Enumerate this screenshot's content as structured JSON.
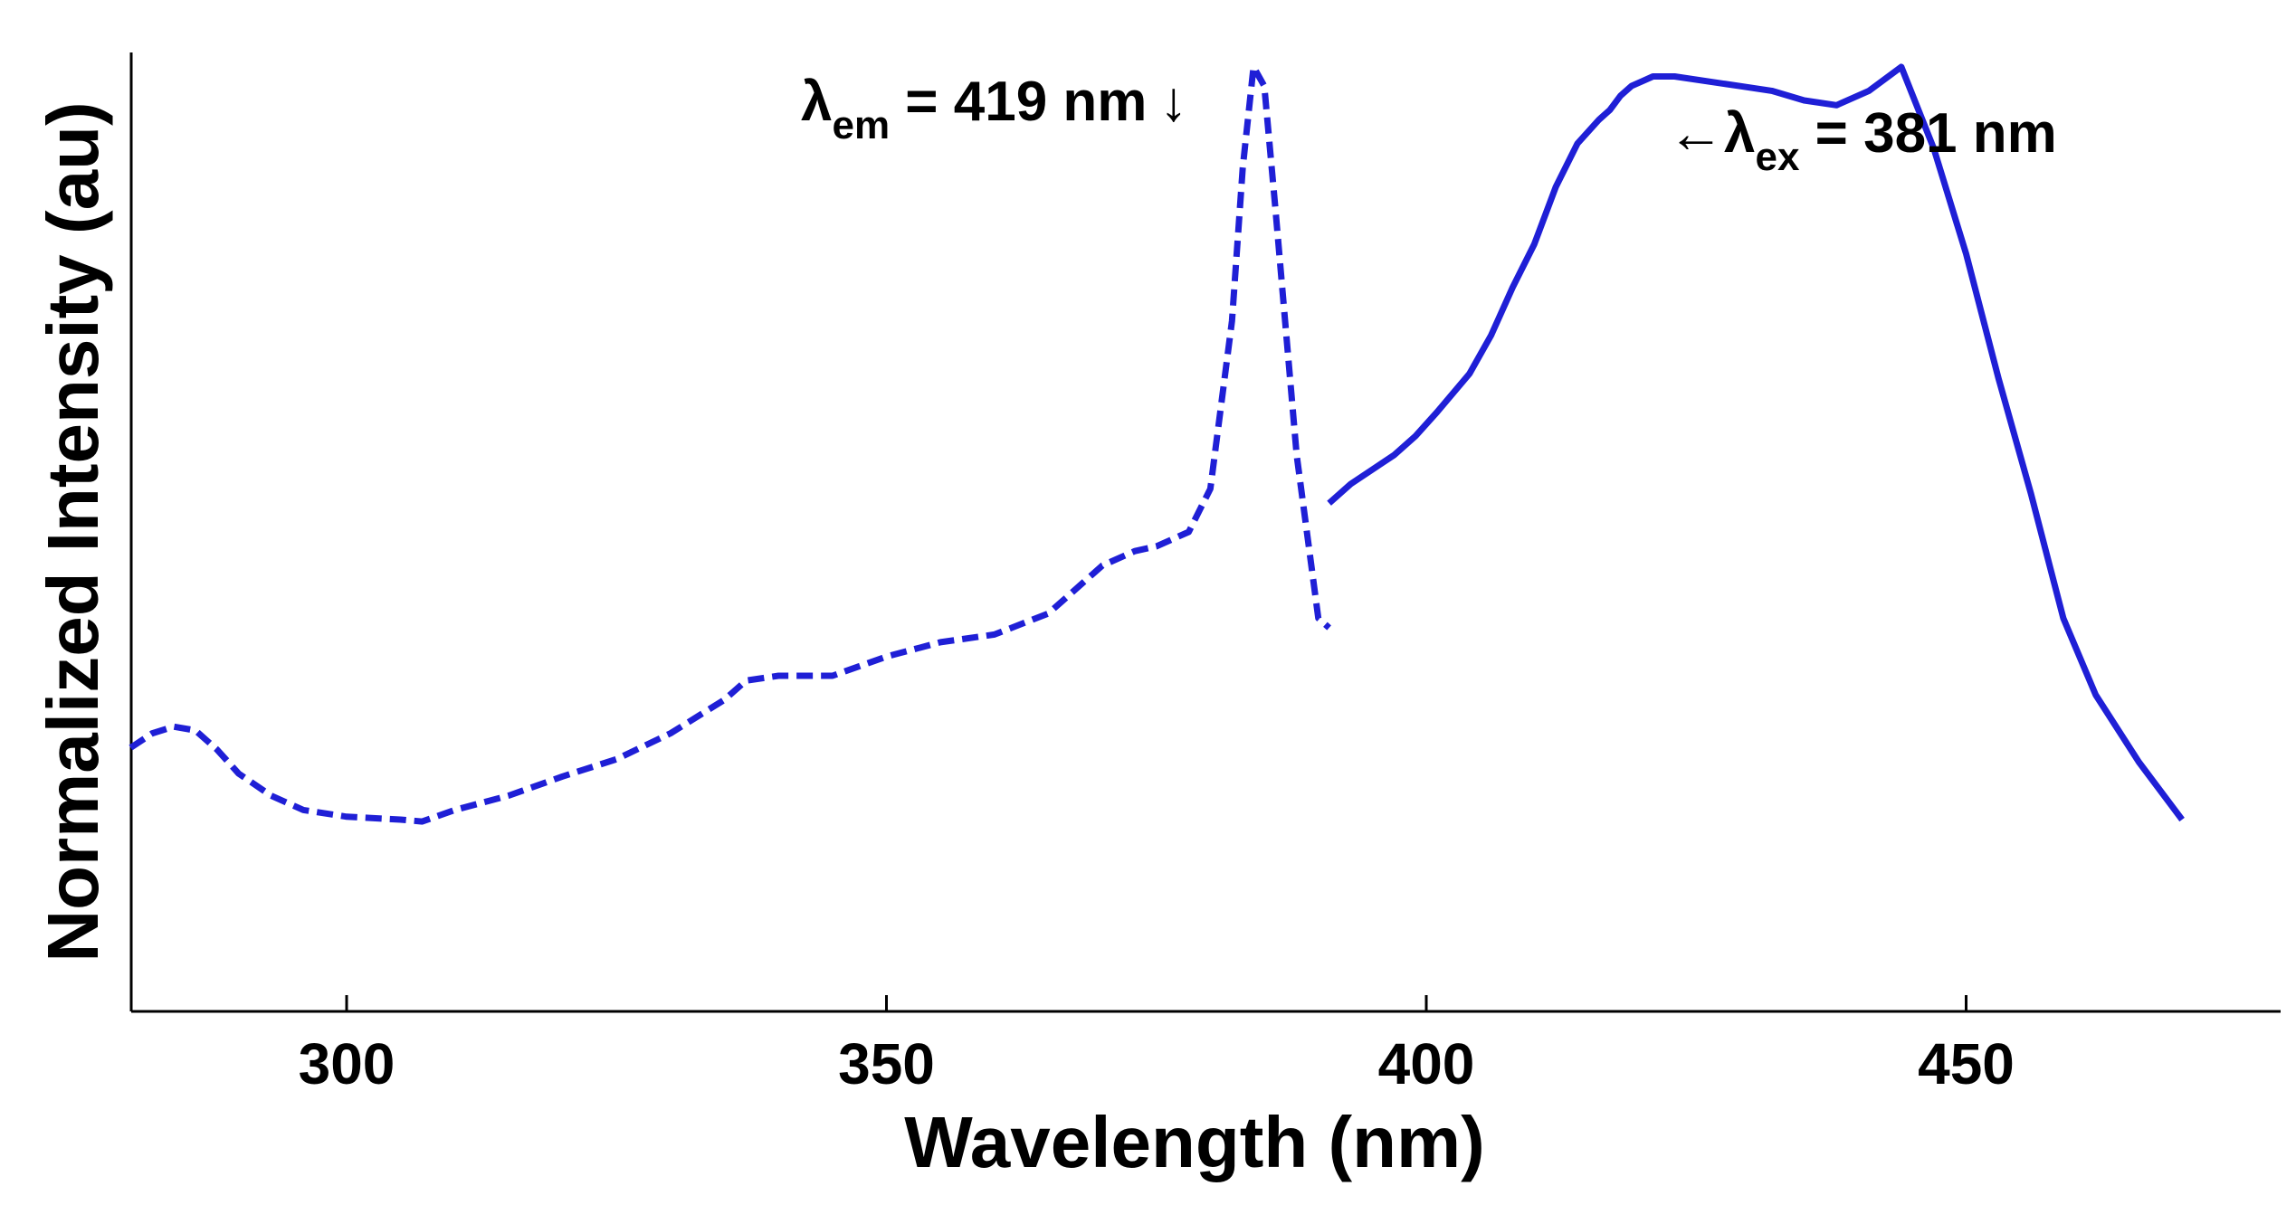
{
  "chart_data": {
    "type": "line",
    "title": "",
    "xlabel": "Wavelength (nm)",
    "ylabel": "Normalized Intensity (au)",
    "xlim": [
      280,
      480
    ],
    "ylim": [
      0,
      1.0
    ],
    "xticks": [
      300,
      350,
      400,
      450
    ],
    "xtick_labels": [
      "300",
      "350",
      "400",
      "450"
    ],
    "yticks_visible": false,
    "grid": false,
    "line_color": "#1f1fd6",
    "series": [
      {
        "name": "dashed spectrum",
        "style": "dashed",
        "x": [
          280,
          282,
          284,
          286,
          288,
          290,
          293,
          296,
          300,
          305,
          307,
          310,
          315,
          320,
          325,
          330,
          335,
          337,
          340,
          345,
          350,
          355,
          360,
          365,
          370,
          373,
          375,
          378,
          380,
          382,
          383,
          384,
          385,
          386,
          388,
          390,
          391
        ],
        "y": [
          0.275,
          0.29,
          0.297,
          0.293,
          0.273,
          0.248,
          0.225,
          0.21,
          0.203,
          0.2,
          0.198,
          0.21,
          0.225,
          0.245,
          0.263,
          0.29,
          0.325,
          0.345,
          0.35,
          0.35,
          0.37,
          0.385,
          0.393,
          0.415,
          0.465,
          0.48,
          0.485,
          0.5,
          0.545,
          0.72,
          0.88,
          0.985,
          0.965,
          0.84,
          0.58,
          0.41,
          0.4
        ]
      },
      {
        "name": "solid spectrum",
        "style": "solid",
        "x": [
          391,
          393,
          395,
          397,
          399,
          401,
          404,
          406,
          408,
          410,
          412,
          414,
          416,
          417,
          418,
          419,
          420,
          421,
          423,
          426,
          429,
          432,
          435,
          438,
          441,
          444,
          447,
          450,
          453,
          456,
          459,
          462,
          466,
          470
        ],
        "y": [
          0.53,
          0.55,
          0.565,
          0.58,
          0.6,
          0.625,
          0.665,
          0.705,
          0.755,
          0.8,
          0.86,
          0.905,
          0.93,
          0.94,
          0.955,
          0.965,
          0.97,
          0.975,
          0.975,
          0.97,
          0.965,
          0.96,
          0.95,
          0.945,
          0.96,
          0.985,
          0.9,
          0.79,
          0.66,
          0.54,
          0.41,
          0.33,
          0.26,
          0.2
        ]
      }
    ],
    "annotations": [
      {
        "symbol": "λ",
        "subscript": "em",
        "text": " = 419 nm",
        "arrow": "↓"
      },
      {
        "symbol": "λ",
        "subscript": "ex",
        "text": " = 381 nm",
        "arrow": "←"
      }
    ]
  }
}
